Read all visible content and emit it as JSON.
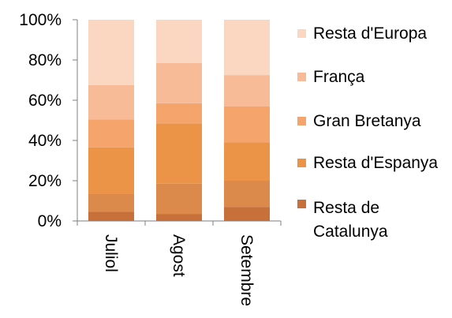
{
  "chart_data": {
    "type": "bar",
    "stacked": true,
    "percent_stacked": true,
    "categories": [
      "Juliol",
      "Agost",
      "Setembre"
    ],
    "series": [
      {
        "name": "Resta de Catalunya",
        "color": "#C8703A",
        "values": [
          4.5,
          3.5,
          7.0
        ]
      },
      {
        "name": "",
        "color": "#DC8A4C",
        "values": [
          9.0,
          15.0,
          13.0
        ]
      },
      {
        "name": "Resta d'Espanya",
        "color": "#EB9448",
        "values": [
          23.0,
          30.0,
          19.0
        ]
      },
      {
        "name": "Gran Bretanya",
        "color": "#F5A46C",
        "values": [
          14.0,
          10.0,
          18.0
        ]
      },
      {
        "name": "França",
        "color": "#F7BC97",
        "values": [
          17.0,
          20.0,
          15.5
        ]
      },
      {
        "name": "Resta d'Europa",
        "color": "#FBD6C1",
        "values": [
          32.5,
          21.5,
          27.5
        ]
      }
    ],
    "legend": {
      "position": "right",
      "entries": [
        {
          "label": "Resta d'Europa",
          "color": "#FBD6C1"
        },
        {
          "label": "França",
          "color": "#F7BC97"
        },
        {
          "label": "Gran Bretanya",
          "color": "#F5A46C"
        },
        {
          "label": "Resta d'Espanya",
          "color": "#EB9448"
        },
        {
          "label_lines": [
            "Resta de",
            "Catalunya"
          ],
          "color": "#C8703A"
        }
      ]
    },
    "y_ticks": [
      "0%",
      "20%",
      "40%",
      "60%",
      "80%",
      "100%"
    ],
    "ylim": [
      0,
      100
    ],
    "grid": false,
    "title": "",
    "xlabel": "",
    "ylabel": ""
  }
}
